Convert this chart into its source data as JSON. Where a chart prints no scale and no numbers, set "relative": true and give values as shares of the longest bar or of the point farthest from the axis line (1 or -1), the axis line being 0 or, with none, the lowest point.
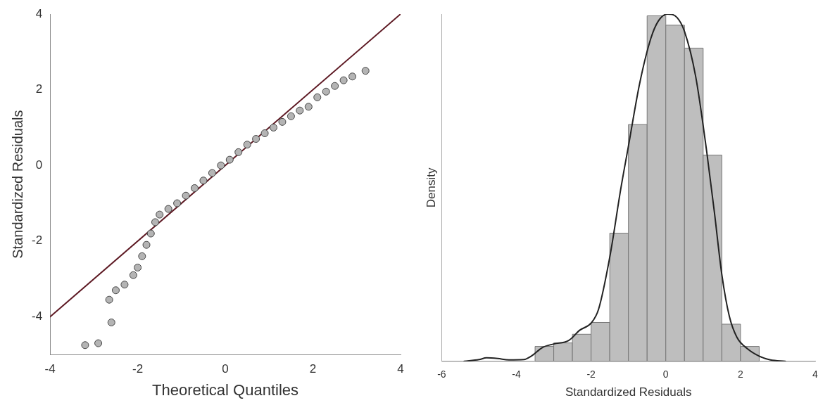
{
  "chart_data": [
    {
      "type": "scatter",
      "xlabel": "Theoretical Quantiles",
      "ylabel": "Standardized Residuals",
      "xlim": [
        -4,
        4
      ],
      "xticks": [
        -4,
        -2,
        0,
        2,
        4
      ],
      "ylim": [
        -5,
        4
      ],
      "yticks": [
        -4,
        -2,
        0,
        2,
        4
      ],
      "grid": false,
      "legend": false,
      "series": [
        {
          "marker": "circle",
          "color": "#b4b4b4",
          "x": [
            -3.2,
            -2.9,
            -2.6,
            -2.65,
            -2.5,
            -2.3,
            -2.1,
            -2.0,
            -1.9,
            -1.8,
            -1.7,
            -1.6,
            -1.5,
            -1.3,
            -1.1,
            -0.9,
            -0.7,
            -0.5,
            -0.3,
            -0.1,
            0.1,
            0.3,
            0.5,
            0.7,
            0.9,
            1.1,
            1.3,
            1.5,
            1.7,
            1.9,
            2.1,
            2.3,
            2.5,
            2.7,
            2.9,
            3.2
          ],
          "values": [
            -4.75,
            -4.7,
            -4.15,
            -3.55,
            -3.3,
            -3.15,
            -2.9,
            -2.7,
            -2.4,
            -2.1,
            -1.8,
            -1.5,
            -1.3,
            -1.15,
            -1.0,
            -0.8,
            -0.6,
            -0.4,
            -0.2,
            0.0,
            0.15,
            0.35,
            0.55,
            0.7,
            0.85,
            1.0,
            1.15,
            1.3,
            1.45,
            1.55,
            1.8,
            1.95,
            2.1,
            2.25,
            2.35,
            2.5
          ]
        },
        {
          "type": "line",
          "marker": "none",
          "color": "#5e1a24",
          "x": [
            -4,
            4
          ],
          "values": [
            -4,
            4
          ]
        }
      ]
    },
    {
      "type": "histogram",
      "relative": true,
      "xlabel": "Standardized Residuals",
      "ylabel": "Density",
      "xlim": [
        -6,
        4
      ],
      "xticks": [
        -6,
        -4,
        -2,
        0,
        2,
        4
      ],
      "grid": false,
      "legend": false,
      "bins": [
        -3.5,
        -3,
        -2.5,
        -2,
        -1.5,
        -1,
        -0.5,
        0,
        0.5,
        1,
        1.5,
        2,
        2.5
      ],
      "series": [
        {
          "color": "#bebebe",
          "values": [
            0.043,
            0.053,
            0.078,
            0.112,
            0.369,
            0.682,
            0.995,
            0.968,
            0.902,
            0.594,
            0.107,
            0.043
          ]
        },
        {
          "type": "line",
          "marker": "none",
          "color": "#222222",
          "x": [
            -5.4,
            -5,
            -4.8,
            -4.5,
            -4.2,
            -3.8,
            -3.6,
            -3.3,
            -3,
            -2.6,
            -2.3,
            -2,
            -1.8,
            -1.5,
            -1.2,
            -1,
            -0.7,
            -0.4,
            -0.2,
            0.05,
            0.3,
            0.5,
            0.8,
            1.1,
            1.3,
            1.5,
            1.7,
            1.9,
            2.2,
            2.5,
            2.8,
            3.2
          ],
          "values": [
            0,
            0.005,
            0.01,
            0.008,
            0.004,
            0.005,
            0.015,
            0.04,
            0.05,
            0.06,
            0.09,
            0.11,
            0.15,
            0.3,
            0.5,
            0.62,
            0.8,
            0.93,
            0.98,
            1,
            0.99,
            0.95,
            0.82,
            0.6,
            0.43,
            0.25,
            0.13,
            0.07,
            0.035,
            0.015,
            0.004,
            0
          ]
        }
      ]
    }
  ]
}
